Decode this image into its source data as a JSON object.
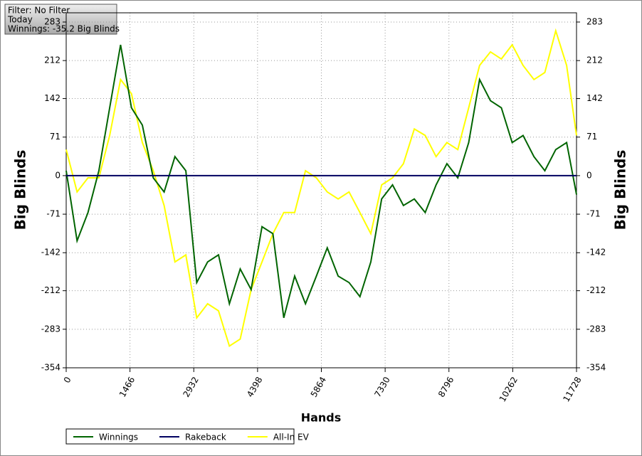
{
  "chart_data": {
    "type": "line",
    "annotations": [
      "Filter: No Filter",
      "Today",
      "Winnings: -35.2 Big Blinds"
    ],
    "xlabel": "Hands",
    "ylabel": "Big Blinds",
    "y2label": "Big Blinds",
    "x": [
      0,
      250,
      500,
      750,
      1000,
      1250,
      1500,
      1750,
      2000,
      2250,
      2500,
      2750,
      3000,
      3250,
      3500,
      3750,
      4000,
      4250,
      4500,
      4750,
      5000,
      5250,
      5500,
      5750,
      6000,
      6250,
      6500,
      6750,
      7000,
      7250,
      7500,
      7750,
      8000,
      8250,
      8500,
      8750,
      9000,
      9250,
      9500,
      9750,
      10000,
      10250,
      10500,
      10750,
      11000,
      11250,
      11500,
      11728
    ],
    "series": [
      {
        "name": "Winnings",
        "color": "#006400",
        "values": [
          9,
          -120,
          -68,
          9,
          125,
          241,
          125,
          93,
          -4,
          -30,
          35,
          9,
          -197,
          -159,
          -146,
          -236,
          -172,
          -210,
          -94,
          -107,
          -262,
          -185,
          -236,
          -185,
          -133,
          -185,
          -197,
          -223,
          -159,
          -43,
          -17,
          -55,
          -43,
          -68,
          -17,
          22,
          -4,
          61,
          177,
          138,
          125,
          61,
          74,
          35,
          9,
          48,
          61,
          -35
        ]
      },
      {
        "name": "Rakeback",
        "color": "#000060",
        "values": [
          0,
          0,
          0,
          0,
          0,
          0,
          0,
          0,
          0,
          0,
          0,
          0,
          0,
          0,
          0,
          0,
          0,
          0,
          0,
          0,
          0,
          0,
          0,
          0,
          0,
          0,
          0,
          0,
          0,
          0,
          0,
          0,
          0,
          0,
          0,
          0,
          0,
          0,
          0,
          0,
          0,
          0,
          0,
          0,
          0,
          0,
          0,
          0
        ]
      },
      {
        "name": "All-In EV",
        "color": "#ffff00",
        "values": [
          48,
          -30,
          -4,
          -4,
          74,
          177,
          151,
          61,
          9,
          -55,
          -159,
          -146,
          -262,
          -236,
          -249,
          -314,
          -301,
          -210,
          -159,
          -107,
          -68,
          -68,
          9,
          -4,
          -30,
          -43,
          -30,
          -68,
          -107,
          -17,
          -4,
          22,
          86,
          74,
          35,
          61,
          48,
          125,
          203,
          228,
          215,
          241,
          203,
          177,
          190,
          267,
          203,
          74
        ]
      }
    ],
    "xlim": [
      0,
      11728
    ],
    "xticks": [
      0,
      1466,
      2932,
      4398,
      5864,
      7330,
      8796,
      10262,
      11728
    ],
    "ylim": [
      -354,
      300
    ],
    "yticks": [
      283,
      212,
      142,
      71,
      0,
      -71,
      -142,
      -212,
      -283,
      -354
    ],
    "y2lim": [
      -354,
      300
    ],
    "y2ticks": [
      283,
      212,
      142,
      71,
      0,
      -71,
      -142,
      -212,
      -283,
      -354
    ],
    "grid": true
  }
}
